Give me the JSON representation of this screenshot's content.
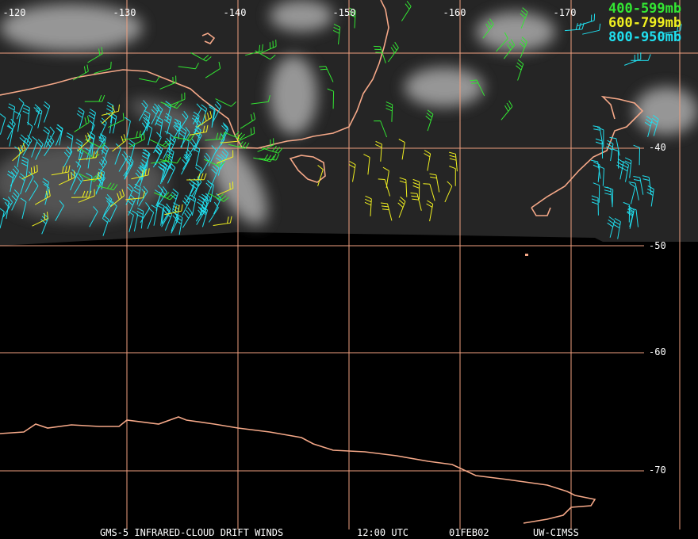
{
  "map": {
    "longitude_labels": [
      "-120",
      "-130",
      "-140",
      "-150",
      "-160",
      "-170"
    ],
    "latitude_labels": [
      "-40",
      "-50",
      "-60",
      "-70"
    ],
    "legend": [
      {
        "label": "400-599mb",
        "color": "#33e633"
      },
      {
        "label": "600-799mb",
        "color": "#f0f020"
      },
      {
        "label": "800-950mb",
        "color": "#20e0f0"
      }
    ],
    "footer": {
      "product": "GMS-5 INFRARED-CLOUD DRIFT WINDS",
      "time": "12:00 UTC",
      "date": "01FEB02",
      "source": "UW-CIMSS"
    }
  }
}
